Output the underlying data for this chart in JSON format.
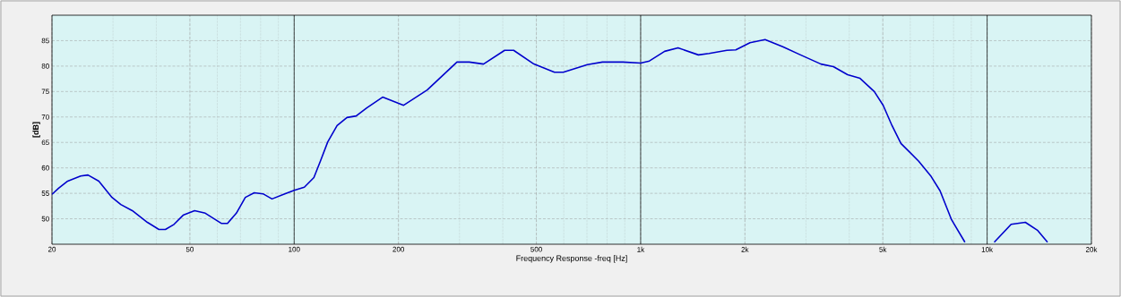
{
  "chart_data": {
    "type": "line",
    "xlabel": "Frequency Response -freq [Hz]",
    "ylabel": "[dB]",
    "log": "x",
    "grid": true,
    "marker": "none",
    "line_style": "solid",
    "xlim": [
      20,
      20000
    ],
    "ylim": [
      45,
      90
    ],
    "xticks": [
      20,
      50,
      100,
      200,
      500,
      {
        "value": 1000,
        "label": "1k"
      },
      {
        "value": 2000,
        "label": "2k"
      },
      {
        "value": 5000,
        "label": "5k"
      },
      {
        "value": 10000,
        "label": "10k"
      },
      {
        "value": 20000,
        "label": "20k"
      }
    ],
    "yticks": [
      50,
      55,
      60,
      65,
      70,
      75,
      80,
      85
    ],
    "series": [
      {
        "color": "#0000cc",
        "x": [
          20,
          20.9,
          22.2,
          24.2,
          25.4,
          27.3,
          29.8,
          31.6,
          34.1,
          37.7,
          40.7,
          42.5,
          45,
          47.8,
          51.6,
          55.4,
          61.6,
          64.2,
          68.1,
          72.3,
          76.7,
          81.3,
          86.3,
          93.2,
          100,
          107,
          114,
          119,
          125,
          133,
          142,
          151,
          162,
          180,
          207,
          242,
          295,
          320,
          352,
          405,
          430,
          492,
          564,
          598,
          702,
          776,
          889,
          1000,
          1060,
          1173,
          1282,
          1468,
          1576,
          1774,
          1882,
          2068,
          2286,
          2572,
          2894,
          3315,
          3601,
          3957,
          4298,
          4725,
          5012,
          5316,
          5640,
          6347,
          6895,
          7314,
          7897,
          8629,
          9500,
          10484,
          11728,
          12890,
          14000,
          14940
        ],
        "values": [
          54.8,
          56.0,
          57.4,
          58.4,
          58.6,
          57.4,
          54.2,
          52.8,
          51.6,
          49.3,
          47.9,
          47.9,
          48.9,
          50.7,
          51.6,
          51.1,
          49.1,
          49.1,
          51.1,
          54.2,
          55.1,
          54.9,
          53.9,
          54.8,
          55.6,
          56.2,
          58.1,
          61.3,
          65.1,
          68.3,
          69.9,
          70.2,
          71.8,
          73.9,
          72.3,
          75.3,
          80.8,
          80.8,
          80.4,
          83.1,
          83.1,
          80.4,
          78.8,
          78.8,
          80.3,
          80.8,
          80.8,
          80.6,
          81.0,
          82.9,
          83.6,
          82.2,
          82.5,
          83.1,
          83.2,
          84.6,
          85.2,
          83.8,
          82.2,
          80.4,
          79.9,
          78.3,
          77.6,
          75.0,
          72.3,
          68.3,
          64.8,
          61.3,
          58.3,
          55.5,
          49.8,
          45.4,
          null,
          45.4,
          48.9,
          49.3,
          47.7,
          45.4
        ]
      }
    ]
  }
}
